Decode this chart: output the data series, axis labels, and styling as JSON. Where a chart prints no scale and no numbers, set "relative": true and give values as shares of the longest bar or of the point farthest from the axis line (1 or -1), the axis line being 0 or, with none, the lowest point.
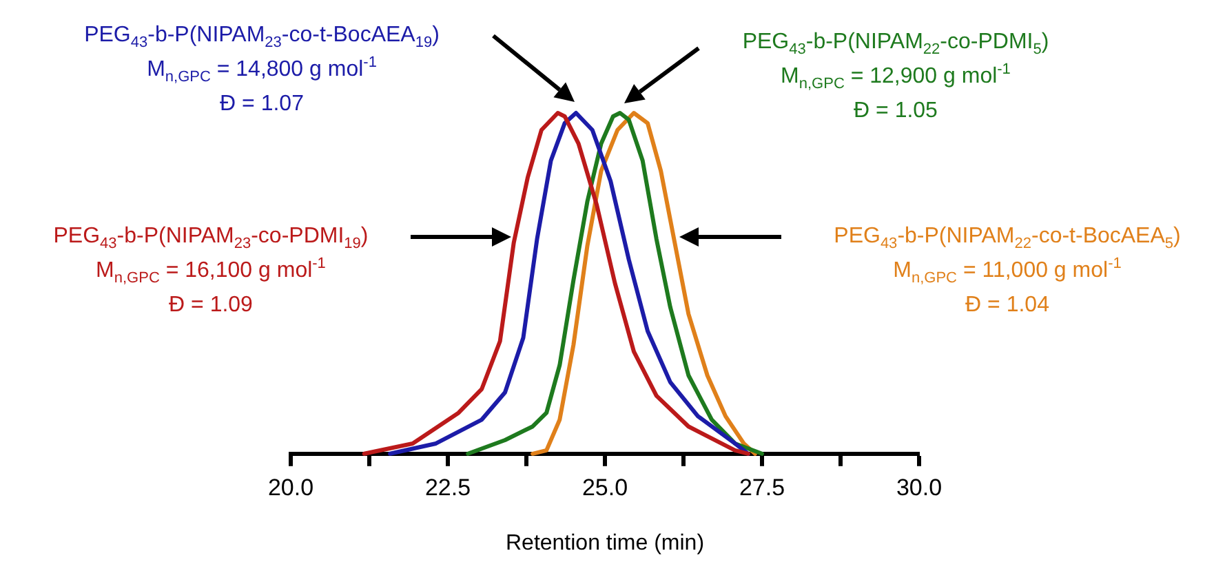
{
  "chart_data": {
    "type": "line",
    "relative": true,
    "xlabel": "Retention time (min)",
    "xlim": [
      20,
      30
    ],
    "xticks": [
      {
        "value": 20,
        "label": "20.0"
      },
      {
        "value": 21.25,
        "label": null
      },
      {
        "value": 22.5,
        "label": "22.5"
      },
      {
        "value": 23.75,
        "label": null
      },
      {
        "value": 25,
        "label": "25.0"
      },
      {
        "value": 26.25,
        "label": null
      },
      {
        "value": 27.5,
        "label": "27.5"
      },
      {
        "value": 28.75,
        "label": null
      },
      {
        "value": 30,
        "label": "30.0"
      }
    ],
    "grid": false,
    "legend": false,
    "series": [
      {
        "name": "PEG$_{43}$-b-P(NIPAM$_{23}$-co-PDMI$_{19}$)",
        "color": "#bb1a1a",
        "x": [
          21.17,
          21.94,
          22.67,
          23.04,
          23.33,
          23.55,
          23.77,
          23.99,
          24.25,
          24.36,
          24.58,
          24.87,
          25.16,
          25.46,
          25.82,
          26.33,
          27.07,
          27.28
        ],
        "values": [
          0,
          0.03,
          0.12,
          0.19,
          0.33,
          0.62,
          0.81,
          0.95,
          1,
          0.99,
          0.91,
          0.73,
          0.5,
          0.3,
          0.17,
          0.08,
          0.01,
          0
        ]
      },
      {
        "name": "PEG$_{43}$-b-P(NIPAM$_{23}$-co-t-BocAEA$_{19}$)",
        "color": "#1c1ca8",
        "x": [
          21.58,
          22.31,
          23.04,
          23.41,
          23.7,
          23.92,
          24.14,
          24.36,
          24.54,
          24.8,
          25.09,
          25.38,
          25.68,
          26.04,
          26.48,
          27.07,
          27.28
        ],
        "values": [
          0,
          0.03,
          0.1,
          0.18,
          0.34,
          0.63,
          0.86,
          0.97,
          1,
          0.95,
          0.8,
          0.57,
          0.36,
          0.21,
          0.11,
          0.03,
          0
        ]
      },
      {
        "name": "PEG$_{43}$-b-P(NIPAM$_{22}$-co-PDMI$_{5}$)",
        "color": "#1e7a1e",
        "x": [
          22.82,
          23.41,
          23.85,
          24.07,
          24.28,
          24.5,
          24.72,
          24.94,
          25.13,
          25.24,
          25.38,
          25.6,
          25.82,
          26.04,
          26.33,
          26.7,
          27.07,
          27.5
        ],
        "values": [
          0,
          0.04,
          0.08,
          0.12,
          0.26,
          0.51,
          0.74,
          0.91,
          0.99,
          1,
          0.98,
          0.86,
          0.63,
          0.43,
          0.23,
          0.1,
          0.03,
          0
        ]
      },
      {
        "name": "PEG$_{43}$-b-P(NIPAM$_{22}$-co-t-BocAEA$_{5}$)",
        "color": "#e0801a",
        "x": [
          23.85,
          24.07,
          24.28,
          24.5,
          24.72,
          24.94,
          25.2,
          25.46,
          25.68,
          25.89,
          26.11,
          26.33,
          26.63,
          26.92,
          27.21,
          27.39
        ],
        "values": [
          0,
          0.01,
          0.1,
          0.32,
          0.61,
          0.83,
          0.95,
          1,
          0.97,
          0.83,
          0.62,
          0.41,
          0.23,
          0.11,
          0.03,
          0
        ]
      }
    ],
    "annotations": [
      "M$_{n,GPC}$ = 16,100 g mol$^{-1}$",
      "Đ = 1.09",
      "M$_{n,GPC}$ = 14,800 g mol$^{-1}$",
      "Đ = 1.07",
      "M$_{n,GPC}$ = 12,900 g mol$^{-1}$",
      "Đ = 1.05",
      "M$_{n,GPC}$ = 11,000 g mol$^{-1}$",
      "Đ = 1.04"
    ]
  }
}
